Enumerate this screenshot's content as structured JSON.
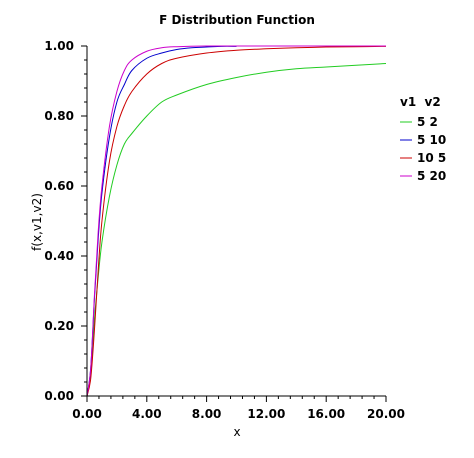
{
  "chart_data": {
    "type": "line",
    "title": "F Distribution Function",
    "xlabel": "x",
    "ylabel": "f(x,v1,v2)",
    "xlim": [
      0,
      20
    ],
    "ylim": [
      0,
      1
    ],
    "xticks": [
      "0.00",
      "4.00",
      "8.00",
      "12.00",
      "16.00",
      "20.00"
    ],
    "yticks": [
      "0.00",
      "0.20",
      "0.40",
      "0.60",
      "0.80",
      "1.00"
    ],
    "grid": false,
    "legend": {
      "placement": "right",
      "header": "v1  v2"
    },
    "series": [
      {
        "name": "5   2",
        "color": "#22cc22",
        "x": [
          0,
          0.25,
          0.5,
          0.75,
          1,
          1.5,
          2,
          2.5,
          3,
          4,
          5,
          6,
          8,
          10,
          12,
          14,
          16,
          18,
          20
        ],
        "y": [
          0,
          0.07,
          0.22,
          0.34,
          0.44,
          0.57,
          0.66,
          0.72,
          0.75,
          0.8,
          0.84,
          0.86,
          0.89,
          0.91,
          0.925,
          0.935,
          0.94,
          0.945,
          0.95
        ]
      },
      {
        "name": "5  10",
        "color": "#0000cc",
        "x": [
          0,
          0.25,
          0.5,
          0.75,
          1,
          1.5,
          2,
          2.5,
          3,
          4,
          5,
          6,
          7,
          8,
          9,
          10
        ],
        "y": [
          0,
          0.08,
          0.28,
          0.45,
          0.58,
          0.74,
          0.84,
          0.89,
          0.93,
          0.965,
          0.98,
          0.99,
          0.995,
          0.997,
          0.999,
          0.999
        ]
      },
      {
        "name": "10   5",
        "color": "#cc0000",
        "x": [
          0,
          0.25,
          0.5,
          0.75,
          1,
          1.5,
          2,
          2.5,
          3,
          4,
          5,
          6,
          8,
          10,
          12,
          14,
          16,
          18,
          20
        ],
        "y": [
          0,
          0.05,
          0.19,
          0.36,
          0.5,
          0.67,
          0.77,
          0.83,
          0.87,
          0.92,
          0.95,
          0.965,
          0.98,
          0.988,
          0.992,
          0.995,
          0.997,
          0.998,
          0.999
        ]
      },
      {
        "name": "5  20",
        "color": "#cc00cc",
        "x": [
          0,
          0.25,
          0.5,
          0.75,
          1,
          1.5,
          2,
          2.5,
          3,
          4,
          5,
          6,
          8,
          10,
          12,
          14,
          16,
          18,
          20
        ],
        "y": [
          0,
          0.08,
          0.29,
          0.47,
          0.6,
          0.77,
          0.87,
          0.93,
          0.96,
          0.985,
          0.995,
          0.998,
          1.0,
          1.0,
          1.0,
          1.0,
          1.0,
          1.0,
          1.0
        ]
      }
    ]
  }
}
